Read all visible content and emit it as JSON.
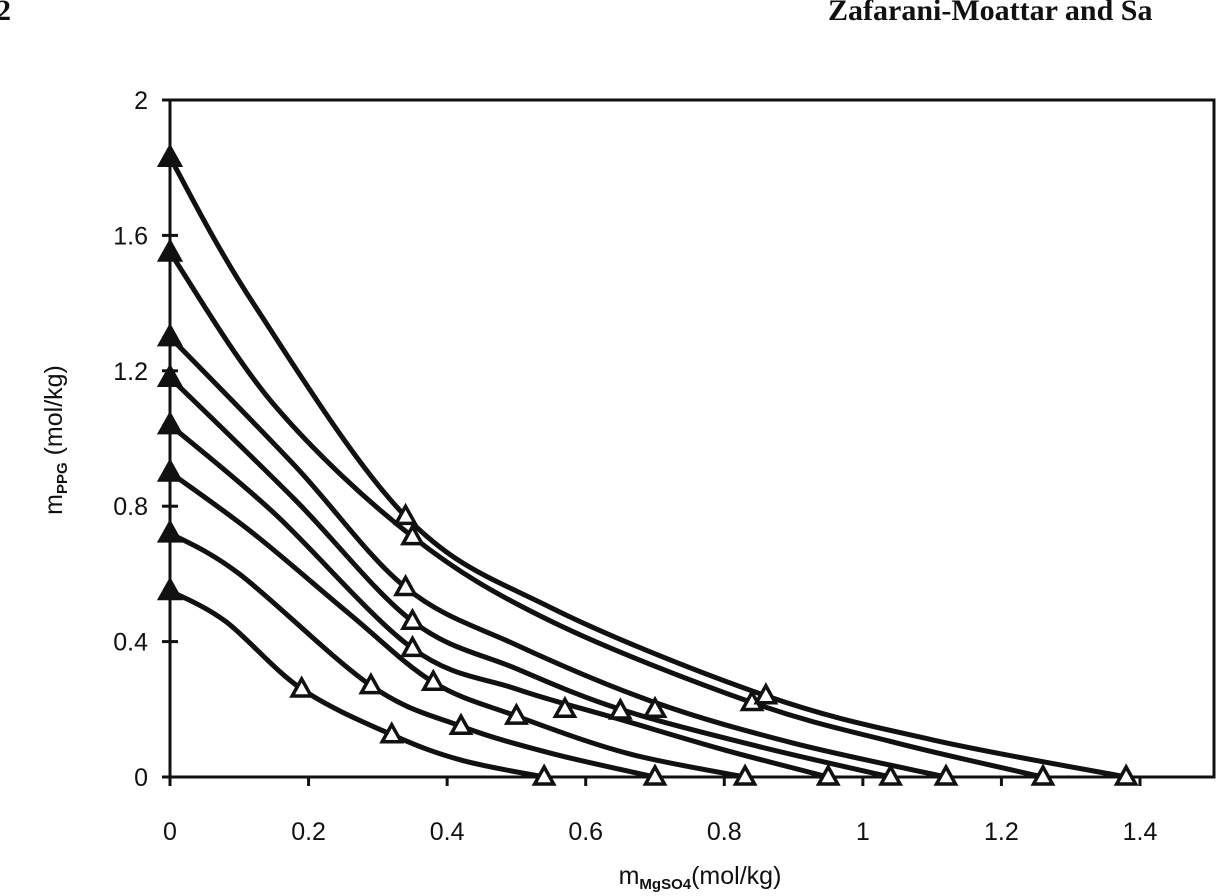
{
  "header": {
    "left": "2",
    "right": "Zafarani-Moattar and Sa"
  },
  "chart_data": {
    "type": "line",
    "title": "",
    "xlabel": {
      "base": "m",
      "sub": "MgSO4",
      "rest": "(mol/kg)"
    },
    "ylabel": {
      "base": "m",
      "sub": "PPG",
      "rest": " (mol/kg)"
    },
    "xlim": [
      0,
      1.4
    ],
    "ylim": [
      0,
      2
    ],
    "x_ticks": [
      "0",
      "0.2",
      "0.4",
      "0.6",
      "0.8",
      "1",
      "1.2",
      "1.4"
    ],
    "y_ticks": [
      "0",
      "0.4",
      "0.8",
      "1.2",
      "1.6",
      "2"
    ],
    "grid": false,
    "marker_filled": "solid triangle",
    "marker_open": "open triangle",
    "series": [
      {
        "points": [
          [
            0,
            0.55
          ],
          [
            0.08,
            0.46
          ],
          [
            0.19,
            0.26
          ],
          [
            0.32,
            0.125
          ],
          [
            0.42,
            0.05
          ],
          [
            0.54,
            0
          ]
        ],
        "filled": [
          [
            0,
            0.55
          ]
        ],
        "open": [
          [
            0.19,
            0.26
          ],
          [
            0.32,
            0.125
          ],
          [
            0.54,
            0
          ]
        ]
      },
      {
        "points": [
          [
            0,
            0.72
          ],
          [
            0.1,
            0.6
          ],
          [
            0.29,
            0.27
          ],
          [
            0.42,
            0.15
          ],
          [
            0.55,
            0.07
          ],
          [
            0.7,
            0
          ]
        ],
        "filled": [
          [
            0,
            0.72
          ]
        ],
        "open": [
          [
            0.29,
            0.27
          ],
          [
            0.42,
            0.15
          ],
          [
            0.7,
            0
          ]
        ]
      },
      {
        "points": [
          [
            0,
            0.9
          ],
          [
            0.12,
            0.72
          ],
          [
            0.26,
            0.48
          ],
          [
            0.38,
            0.28
          ],
          [
            0.5,
            0.18
          ],
          [
            0.66,
            0.07
          ],
          [
            0.83,
            0
          ]
        ],
        "filled": [
          [
            0,
            0.9
          ]
        ],
        "open": [
          [
            0.38,
            0.28
          ],
          [
            0.5,
            0.18
          ],
          [
            0.83,
            0
          ]
        ]
      },
      {
        "points": [
          [
            0,
            1.04
          ],
          [
            0.15,
            0.78
          ],
          [
            0.35,
            0.38
          ],
          [
            0.5,
            0.26
          ],
          [
            0.65,
            0.17
          ],
          [
            0.8,
            0.08
          ],
          [
            0.95,
            0
          ]
        ],
        "filled": [
          [
            0,
            1.04
          ]
        ],
        "open": [
          [
            0.35,
            0.38
          ],
          [
            0.57,
            0.2
          ],
          [
            0.95,
            0
          ]
        ]
      },
      {
        "points": [
          [
            0,
            1.18
          ],
          [
            0.18,
            0.82
          ],
          [
            0.35,
            0.46
          ],
          [
            0.5,
            0.32
          ],
          [
            0.65,
            0.2
          ],
          [
            0.85,
            0.09
          ],
          [
            1.04,
            0
          ]
        ],
        "filled": [
          [
            0,
            1.18
          ]
        ],
        "open": [
          [
            0.35,
            0.46
          ],
          [
            0.65,
            0.195
          ],
          [
            1.04,
            0
          ]
        ]
      },
      {
        "points": [
          [
            0,
            1.3
          ],
          [
            0.18,
            0.92
          ],
          [
            0.34,
            0.56
          ],
          [
            0.5,
            0.39
          ],
          [
            0.7,
            0.22
          ],
          [
            0.9,
            0.1
          ],
          [
            1.12,
            0
          ]
        ],
        "filled": [
          [
            0,
            1.3
          ]
        ],
        "open": [
          [
            0.34,
            0.56
          ],
          [
            0.7,
            0.2
          ],
          [
            1.12,
            0
          ]
        ]
      },
      {
        "points": [
          [
            0,
            1.55
          ],
          [
            0.15,
            1.1
          ],
          [
            0.35,
            0.71
          ],
          [
            0.55,
            0.46
          ],
          [
            0.84,
            0.22
          ],
          [
            1.05,
            0.1
          ],
          [
            1.26,
            0
          ]
        ],
        "filled": [
          [
            0,
            1.55
          ]
        ],
        "open": [
          [
            0.35,
            0.71
          ],
          [
            0.84,
            0.22
          ],
          [
            1.26,
            0
          ]
        ]
      },
      {
        "points": [
          [
            0,
            1.83
          ],
          [
            0.12,
            1.4
          ],
          [
            0.34,
            0.77
          ],
          [
            0.55,
            0.5
          ],
          [
            0.86,
            0.24
          ],
          [
            1.1,
            0.11
          ],
          [
            1.38,
            0
          ]
        ],
        "filled": [
          [
            0,
            1.83
          ]
        ],
        "open": [
          [
            0.34,
            0.77
          ],
          [
            0.86,
            0.24
          ],
          [
            1.38,
            0
          ]
        ]
      }
    ]
  }
}
